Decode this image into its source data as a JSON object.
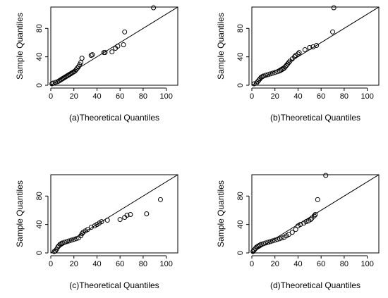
{
  "chart_data": [
    {
      "type": "scatter",
      "title": "",
      "xlabel": "(a)Theoretical Quantiles",
      "ylabel": "Sample Quantiles",
      "xlim": [
        0,
        110
      ],
      "ylim": [
        0,
        110
      ],
      "xticks": [
        "0",
        "20",
        "40",
        "60",
        "80",
        "100"
      ],
      "yticks": [
        "0",
        "40",
        "80"
      ],
      "grid": false,
      "reference_line": {
        "slope": 1,
        "intercept": 0
      },
      "points": [
        [
          1,
          2
        ],
        [
          2,
          3
        ],
        [
          4,
          4
        ],
        [
          6,
          5
        ],
        [
          7,
          6
        ],
        [
          8,
          7
        ],
        [
          9,
          8
        ],
        [
          10,
          9
        ],
        [
          11,
          10
        ],
        [
          12,
          11
        ],
        [
          13,
          12
        ],
        [
          14,
          13
        ],
        [
          15,
          14
        ],
        [
          16,
          15
        ],
        [
          17,
          16
        ],
        [
          18,
          17
        ],
        [
          19,
          18
        ],
        [
          20,
          19
        ],
        [
          21,
          20
        ],
        [
          22,
          22
        ],
        [
          23,
          24
        ],
        [
          24,
          26
        ],
        [
          25,
          29
        ],
        [
          26,
          32
        ],
        [
          27,
          38
        ],
        [
          35,
          42
        ],
        [
          36,
          43
        ],
        [
          46,
          46
        ],
        [
          47,
          46
        ],
        [
          53,
          47
        ],
        [
          56,
          52
        ],
        [
          58,
          55
        ],
        [
          63,
          57
        ],
        [
          64,
          75
        ],
        [
          89,
          109
        ]
      ]
    },
    {
      "type": "scatter",
      "title": "",
      "xlabel": "(b)Theoretical Quantiles",
      "ylabel": "Sample Quantiles",
      "xlim": [
        0,
        110
      ],
      "ylim": [
        0,
        110
      ],
      "xticks": [
        "0",
        "20",
        "40",
        "60",
        "80",
        "100"
      ],
      "yticks": [
        "0",
        "40",
        "80"
      ],
      "grid": false,
      "reference_line": {
        "slope": 1,
        "intercept": 0
      },
      "points": [
        [
          2,
          2
        ],
        [
          4,
          3
        ],
        [
          5,
          5
        ],
        [
          6,
          7
        ],
        [
          7,
          9
        ],
        [
          8,
          11
        ],
        [
          9,
          12
        ],
        [
          10,
          13
        ],
        [
          12,
          14
        ],
        [
          14,
          15
        ],
        [
          16,
          16
        ],
        [
          18,
          17
        ],
        [
          20,
          18
        ],
        [
          22,
          19
        ],
        [
          24,
          20
        ],
        [
          25,
          21
        ],
        [
          26,
          22
        ],
        [
          27,
          23
        ],
        [
          28,
          24
        ],
        [
          29,
          26
        ],
        [
          30,
          28
        ],
        [
          31,
          30
        ],
        [
          32,
          32
        ],
        [
          33,
          34
        ],
        [
          35,
          37
        ],
        [
          37,
          40
        ],
        [
          38,
          42
        ],
        [
          40,
          44
        ],
        [
          41,
          46
        ],
        [
          46,
          50
        ],
        [
          50,
          53
        ],
        [
          53,
          54
        ],
        [
          56,
          56
        ],
        [
          70,
          75
        ],
        [
          71,
          109
        ]
      ]
    },
    {
      "type": "scatter",
      "title": "",
      "xlabel": "(c)Theoretical Quantiles",
      "ylabel": "Sample Quantiles",
      "xlim": [
        0,
        110
      ],
      "ylim": [
        0,
        110
      ],
      "xticks": [
        "0",
        "20",
        "40",
        "60",
        "80",
        "100"
      ],
      "yticks": [
        "0",
        "40",
        "80"
      ],
      "grid": false,
      "reference_line": {
        "slope": 1,
        "intercept": 0
      },
      "points": [
        [
          3,
          2
        ],
        [
          4,
          3
        ],
        [
          5,
          5
        ],
        [
          6,
          8
        ],
        [
          7,
          10
        ],
        [
          8,
          12
        ],
        [
          9,
          13
        ],
        [
          10,
          14
        ],
        [
          12,
          15
        ],
        [
          14,
          16
        ],
        [
          16,
          17
        ],
        [
          18,
          18
        ],
        [
          20,
          19
        ],
        [
          22,
          20
        ],
        [
          24,
          21
        ],
        [
          26,
          24
        ],
        [
          27,
          27
        ],
        [
          28,
          29
        ],
        [
          30,
          31
        ],
        [
          32,
          33
        ],
        [
          35,
          36
        ],
        [
          38,
          38
        ],
        [
          40,
          40
        ],
        [
          42,
          42
        ],
        [
          44,
          44
        ],
        [
          49,
          46
        ],
        [
          60,
          47
        ],
        [
          64,
          50
        ],
        [
          66,
          53
        ],
        [
          69,
          54
        ],
        [
          83,
          55
        ],
        [
          95,
          75
        ]
      ]
    },
    {
      "type": "scatter",
      "title": "",
      "xlabel": "(d)Theoretical Quantiles",
      "ylabel": "Sample Quantiles",
      "xlim": [
        0,
        110
      ],
      "ylim": [
        0,
        110
      ],
      "xticks": [
        "0",
        "20",
        "40",
        "60",
        "80",
        "100"
      ],
      "yticks": [
        "0",
        "40",
        "80"
      ],
      "grid": false,
      "reference_line": {
        "slope": 1,
        "intercept": 0
      },
      "points": [
        [
          1,
          2
        ],
        [
          2,
          4
        ],
        [
          3,
          6
        ],
        [
          4,
          8
        ],
        [
          5,
          9
        ],
        [
          6,
          10
        ],
        [
          7,
          11
        ],
        [
          8,
          12
        ],
        [
          10,
          13
        ],
        [
          12,
          14
        ],
        [
          14,
          15
        ],
        [
          16,
          16
        ],
        [
          18,
          17
        ],
        [
          20,
          18
        ],
        [
          22,
          19
        ],
        [
          24,
          20
        ],
        [
          26,
          21
        ],
        [
          28,
          22
        ],
        [
          30,
          24
        ],
        [
          32,
          26
        ],
        [
          35,
          29
        ],
        [
          38,
          33
        ],
        [
          40,
          38
        ],
        [
          42,
          40
        ],
        [
          45,
          42
        ],
        [
          47,
          44
        ],
        [
          49,
          45
        ],
        [
          51,
          47
        ],
        [
          52,
          49
        ],
        [
          54,
          52
        ],
        [
          55,
          54
        ],
        [
          57,
          75
        ],
        [
          64,
          109
        ]
      ]
    }
  ]
}
